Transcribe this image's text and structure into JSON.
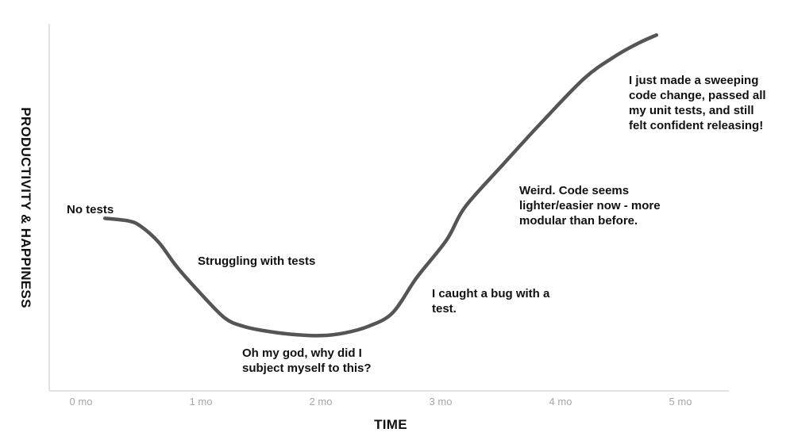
{
  "chart_data": {
    "type": "line",
    "title": "",
    "xlabel": "TIME",
    "ylabel": "PRODUCTIVITY & HAPPINESS",
    "xlim": [
      0,
      5
    ],
    "x_ticks": [
      {
        "value": 0,
        "label": "0 mo"
      },
      {
        "value": 1,
        "label": "1 mo"
      },
      {
        "value": 2,
        "label": "2 mo"
      },
      {
        "value": 3,
        "label": "3 mo"
      },
      {
        "value": 4,
        "label": "4 mo"
      },
      {
        "value": 5,
        "label": "5 mo"
      }
    ],
    "y_ticks_shown": false,
    "grid": false,
    "legend": "none",
    "series": [
      {
        "color": "#555555",
        "points": [
          [
            0.2,
            44
          ],
          [
            0.4,
            43
          ],
          [
            0.5,
            41
          ],
          [
            0.65,
            35
          ],
          [
            0.8,
            26
          ],
          [
            1.0,
            16
          ],
          [
            1.2,
            7
          ],
          [
            1.35,
            4
          ],
          [
            1.5,
            2.5
          ],
          [
            1.75,
            1
          ],
          [
            2.0,
            0.5
          ],
          [
            2.2,
            1.5
          ],
          [
            2.4,
            4
          ],
          [
            2.6,
            9
          ],
          [
            2.8,
            22
          ],
          [
            3.05,
            36
          ],
          [
            3.2,
            48
          ],
          [
            3.5,
            63
          ],
          [
            3.85,
            80
          ],
          [
            4.2,
            96
          ],
          [
            4.45,
            104
          ],
          [
            4.65,
            109
          ],
          [
            4.8,
            112
          ]
        ]
      }
    ],
    "annotations": [
      {
        "lines": [
          "No tests"
        ]
      },
      {
        "lines": [
          "Struggling with tests"
        ]
      },
      {
        "lines": [
          "Oh my god, why did I",
          "subject myself to this?"
        ]
      },
      {
        "lines": [
          "I caught a bug with a",
          "test."
        ]
      },
      {
        "lines": [
          "Weird. Code seems",
          "lighter/easier now - more",
          "modular than before."
        ]
      },
      {
        "lines": [
          "I just made a sweeping",
          "code change, passed all",
          "my unit tests, and still",
          "felt confident releasing!"
        ]
      }
    ]
  }
}
